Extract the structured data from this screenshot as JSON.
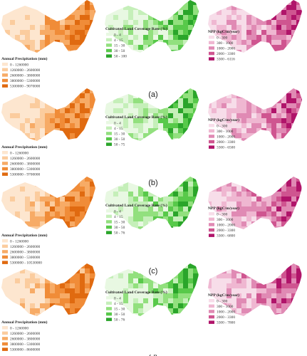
{
  "rows": [
    {
      "label": "(a)",
      "panels": [
        {
          "title": "Annual Precipitation (mm)",
          "items": [
            "0 - 1260000",
            "1260000 - 2600000",
            "2600000 - 3800000",
            "3800000 - 5300000",
            "5300000 - 9070000"
          ]
        },
        {
          "title": "Cultivated Land Coverage Rate (%)",
          "items": [
            "0 - 4",
            "4 - 15",
            "15 - 30",
            "30 - 50",
            "50 - 100"
          ]
        },
        {
          "title": "NPP (kgC/m/year)",
          "items": [
            "0 - 300",
            "300 - 1000",
            "1000 - 2000",
            "2000 - 3300",
            "3300 - 6116"
          ]
        }
      ]
    },
    {
      "label": "(b)",
      "panels": [
        {
          "title": "Annual Precipitation (mm)",
          "items": [
            "0 - 1260000",
            "1260000 - 2600000",
            "2600000 - 3800000",
            "3800000 - 5300000",
            "5300000 - 9700000"
          ]
        },
        {
          "title": "Cultivated Land Coverage Rate (%)",
          "items": [
            "0 - 4",
            "4 - 15",
            "15 - 30",
            "30 - 50",
            "50 - 75"
          ]
        },
        {
          "title": "NPP (kgC/m/year)",
          "items": [
            "0 - 300",
            "300 - 1000",
            "1000 - 2000",
            "2000 - 3300",
            "3300 - 6500"
          ]
        }
      ]
    },
    {
      "label": "(c)",
      "panels": [
        {
          "title": "Annual Precipitation (mm)",
          "items": [
            "0 - 1260000",
            "1260000 - 2600000",
            "2600000 - 3800000",
            "3800000 - 5300000",
            "5300000 - 10530000"
          ]
        },
        {
          "title": "Cultivated Land Coverage Rate (%)",
          "items": [
            "0 - 4",
            "4 - 15",
            "15 - 30",
            "30 - 50",
            "50 - 76"
          ]
        },
        {
          "title": "NPP (kgC/m/year)",
          "items": [
            "0 - 300",
            "300 - 1000",
            "1000 - 2000",
            "2000 - 3300",
            "3300 - 6800"
          ]
        }
      ]
    },
    {
      "label": "(d)",
      "panels": [
        {
          "title": "Annual Precipitation (mm)",
          "items": [
            "0 - 1260000",
            "1260000 - 2600000",
            "2600000 - 3800000",
            "3800000 - 5300000",
            "5300000 - 8600000"
          ]
        },
        {
          "title": "Cultivated Land Coverage Rate (%)",
          "items": [
            "0 - 4",
            "4 - 15",
            "15 - 30",
            "30 - 50",
            "50 - 76"
          ]
        },
        {
          "title": "NPP (kgC/m/year)",
          "items": [
            "0 - 300",
            "300 - 1000",
            "1000 - 2000",
            "2000 - 3300",
            "3300 - 7800"
          ]
        }
      ]
    }
  ]
}
